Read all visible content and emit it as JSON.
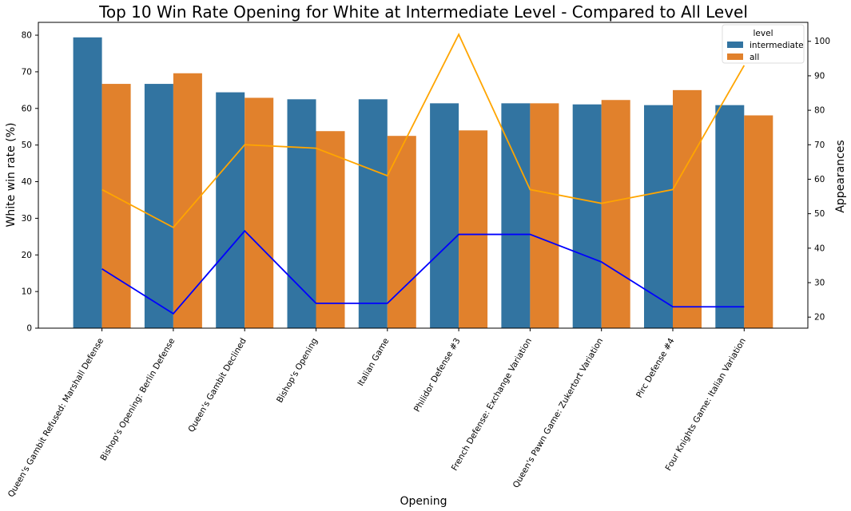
{
  "chart_data": {
    "type": "bar",
    "title": "Top 10 Win Rate Opening for White at Intermediate Level - Compared to All Level",
    "xlabel": "Opening",
    "ylabel": "White win rate (%)",
    "y2label": "Appearances",
    "ylim": [
      0,
      83.5
    ],
    "y2lim": [
      16.8,
      105.5
    ],
    "yticks": [
      0,
      10,
      20,
      30,
      40,
      50,
      60,
      70,
      80
    ],
    "y2ticks": [
      20,
      30,
      40,
      50,
      60,
      70,
      80,
      90,
      100
    ],
    "grid": false,
    "legend": {
      "title": "level",
      "placement": "top-right"
    },
    "categories": [
      "Queen's Gambit Refused: Marshall Defense",
      "Bishop's Opening: Berlin Defense",
      "Queen's Gambit Declined",
      "Bishop's Opening",
      "Italian Game",
      "Philidor Defense #3",
      "French Defense: Exchange Variation",
      "Queen's Pawn Game: Zukertort Variation",
      "Pirc Defense #4",
      "Four Knights Game: Italian Variation"
    ],
    "series": [
      {
        "name": "intermediate",
        "color": "#3274a1",
        "values": [
          79.4,
          66.7,
          64.4,
          62.5,
          62.5,
          61.4,
          61.4,
          61.1,
          60.9,
          60.9
        ]
      },
      {
        "name": "all",
        "color": "#e1812c",
        "values": [
          66.7,
          69.6,
          62.9,
          53.8,
          52.5,
          54.0,
          61.4,
          62.3,
          65.0,
          58.1
        ]
      }
    ],
    "lines": [
      {
        "axis": "y2",
        "color": "#ffa500",
        "values": [
          57,
          46,
          70,
          69,
          61,
          102,
          57,
          53,
          57,
          93
        ]
      },
      {
        "axis": "y2",
        "color": "#0000ff",
        "values": [
          34,
          21,
          45,
          24,
          24,
          44,
          44,
          36,
          23,
          23
        ]
      }
    ]
  }
}
